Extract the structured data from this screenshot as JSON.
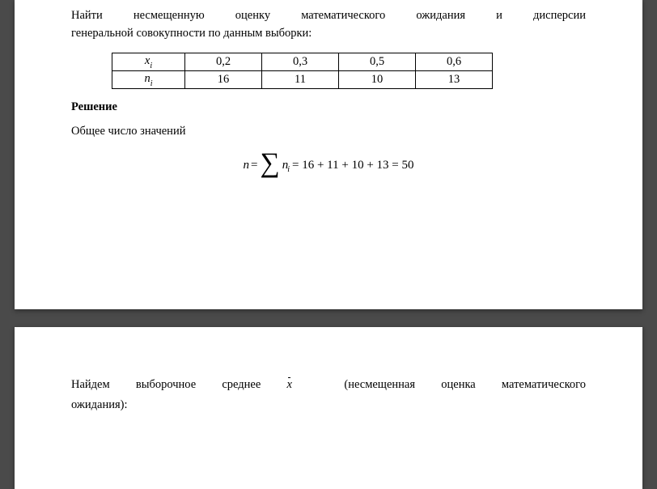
{
  "problem": {
    "line1": "Найти несмещенную оценку математического ожидания и дисперсии",
    "line2": "генеральной совокупности по данным выборки:"
  },
  "table": {
    "row1_label": "x",
    "row1_sub": "i",
    "row2_label": "n",
    "row2_sub": "i",
    "xi": [
      "0,2",
      "0,3",
      "0,5",
      "0,6"
    ],
    "ni": [
      "16",
      "11",
      "10",
      "13"
    ]
  },
  "solution_title": "Решение",
  "total_label": "Общее число значений",
  "formula": {
    "lhs_var": "n",
    "eq": " = ",
    "sum_var": "n",
    "sum_sub": "i",
    "rhs": " = 16 + 11 + 10 + 13 = 50"
  },
  "page2": {
    "line1_a": "Найдем выборочное среднее ",
    "xbar": "x̄",
    "line1_b": " (несмещенная оценка математического",
    "line2": "ожидания):"
  }
}
